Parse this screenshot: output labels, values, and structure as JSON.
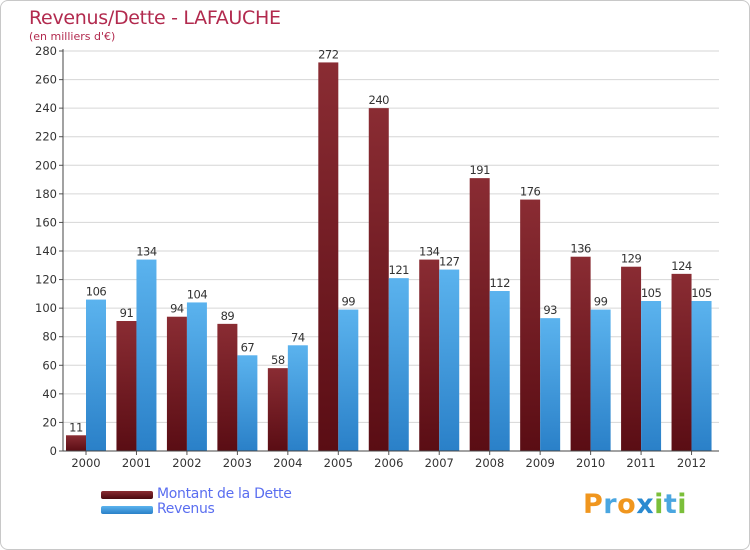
{
  "title": "Revenus/Dette - LAFAUCHE",
  "subtitle": "(en milliers d'€)",
  "logo": {
    "letters": [
      "P",
      "r",
      "o",
      "x",
      "i",
      "t",
      "i"
    ],
    "colors": [
      "#f0961e",
      "#4aa6e0",
      "#f0961e",
      "#2a8ad0",
      "#7bbf3a",
      "#4aa6e0",
      "#7bbf3a"
    ]
  },
  "chart_data": {
    "type": "bar",
    "categories": [
      "2000",
      "2001",
      "2002",
      "2003",
      "2004",
      "2005",
      "2006",
      "2007",
      "2008",
      "2009",
      "2010",
      "2011",
      "2012"
    ],
    "series": [
      {
        "name": "Montant de la Dette",
        "color": "#7a1d24",
        "values": [
          11,
          91,
          94,
          89,
          58,
          272,
          240,
          134,
          191,
          176,
          136,
          129,
          124
        ]
      },
      {
        "name": "Revenus",
        "color": "#4aa6e6",
        "values": [
          106,
          134,
          104,
          67,
          74,
          99,
          121,
          127,
          112,
          93,
          99,
          105,
          105
        ]
      }
    ],
    "yticks": [
      0,
      20,
      40,
      60,
      80,
      100,
      120,
      140,
      160,
      180,
      200,
      220,
      240,
      260,
      280
    ],
    "ylim": [
      0,
      280
    ],
    "grid": true,
    "legend": "bottom-left"
  }
}
